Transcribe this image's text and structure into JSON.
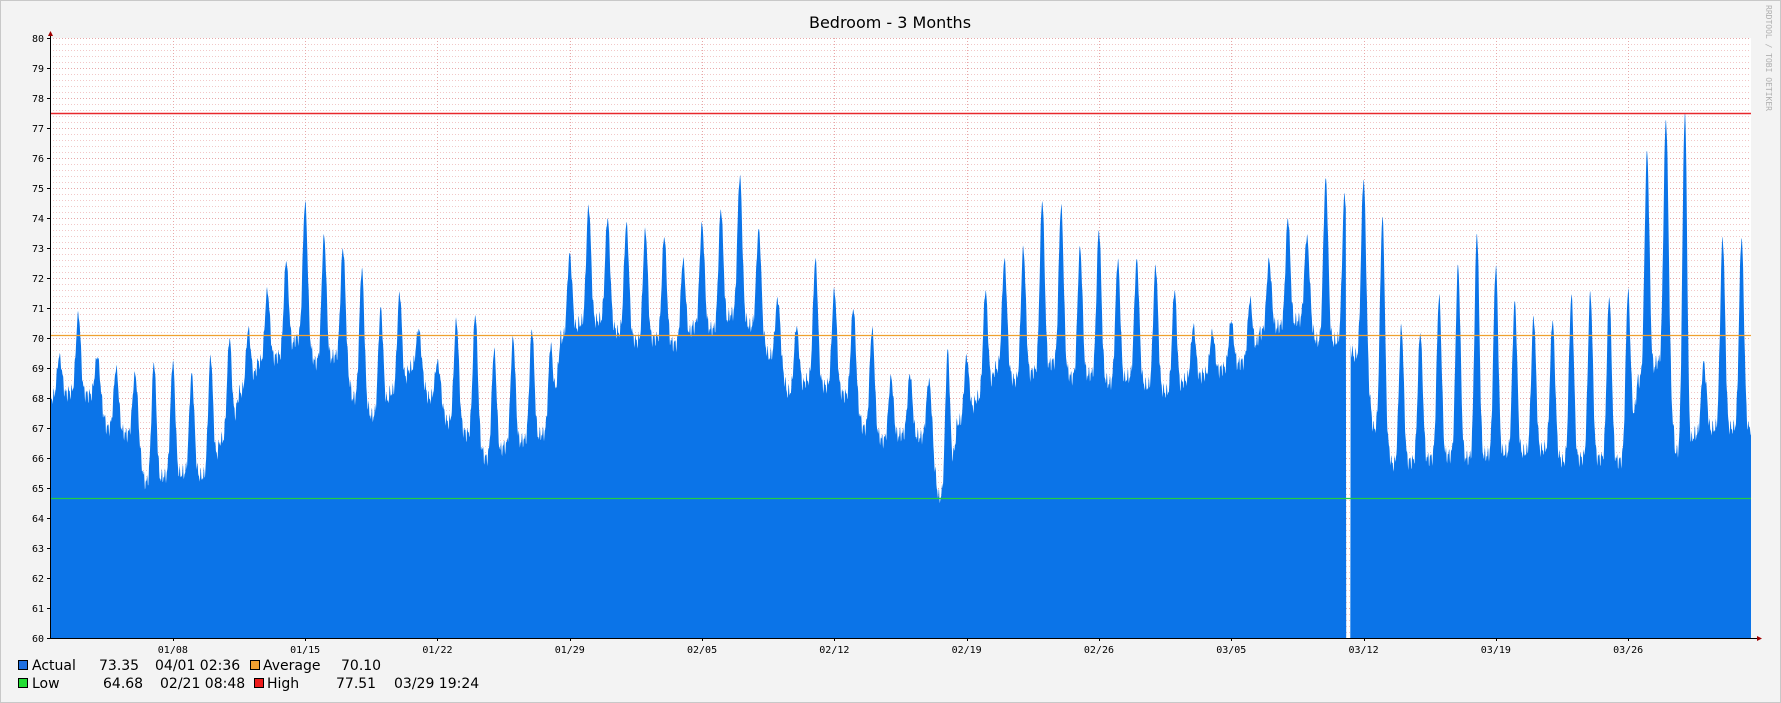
{
  "watermark": "RRDTOOL / TOBI OETIKER",
  "chart_data": {
    "type": "area",
    "title": "Bedroom - 3 Months",
    "ylim": [
      60,
      80
    ],
    "yticks": [
      60,
      61,
      62,
      63,
      64,
      65,
      66,
      67,
      68,
      69,
      70,
      71,
      72,
      73,
      74,
      75,
      76,
      77,
      78,
      79,
      80
    ],
    "xlim_days": [
      0,
      90
    ],
    "xticks": [
      {
        "day": 6.5,
        "label": "01/08"
      },
      {
        "day": 13.5,
        "label": "01/15"
      },
      {
        "day": 20.5,
        "label": "01/22"
      },
      {
        "day": 27.5,
        "label": "01/29"
      },
      {
        "day": 34.5,
        "label": "02/05"
      },
      {
        "day": 41.5,
        "label": "02/12"
      },
      {
        "day": 48.5,
        "label": "02/19"
      },
      {
        "day": 55.5,
        "label": "02/26"
      },
      {
        "day": 62.5,
        "label": "03/05"
      },
      {
        "day": 69.5,
        "label": "03/12"
      },
      {
        "day": 76.5,
        "label": "03/19"
      },
      {
        "day": 83.5,
        "label": "03/26"
      }
    ],
    "grid": true,
    "gap_day": 68.7,
    "series": [
      {
        "name": "Actual",
        "color": "#0b74e8",
        "daily_high": [
          69.4,
          70.8,
          69.4,
          69.0,
          68.8,
          69.2,
          69.2,
          68.8,
          69.4,
          70.0,
          70.3,
          71.6,
          72.6,
          74.5,
          73.4,
          73.0,
          72.3,
          71.0,
          71.5,
          70.3,
          69.2,
          70.6,
          70.8,
          69.6,
          70.0,
          70.3,
          69.8,
          72.8,
          74.4,
          74.0,
          73.8,
          73.6,
          73.4,
          72.6,
          73.8,
          74.3,
          75.4,
          73.6,
          71.3,
          70.4,
          72.6,
          71.6,
          71.0,
          70.3,
          68.7,
          68.8,
          68.6,
          69.6,
          69.4,
          71.6,
          72.6,
          73.0,
          74.6,
          74.4,
          73.0,
          73.6,
          72.6,
          72.6,
          72.4,
          71.6,
          70.4,
          70.2,
          70.6,
          71.3,
          72.6,
          74.0,
          73.4,
          75.3,
          74.8,
          75.3,
          74.0,
          70.4,
          70.2,
          71.4,
          72.4,
          73.5,
          72.4,
          71.2,
          70.7,
          70.6,
          71.4,
          71.5,
          71.4,
          71.6,
          76.2,
          77.3,
          77.51,
          69.2,
          73.35
        ],
        "daily_low": [
          68.0,
          68.2,
          68.1,
          67.0,
          66.8,
          65.2,
          65.4,
          65.5,
          65.4,
          66.6,
          68.2,
          69.2,
          69.4,
          70.0,
          69.2,
          69.4,
          68.0,
          67.4,
          68.2,
          69.0,
          68.0,
          67.2,
          66.8,
          66.0,
          66.4,
          66.6,
          66.8,
          70.0,
          70.5,
          70.6,
          70.2,
          69.9,
          70.0,
          69.8,
          70.4,
          70.3,
          70.8,
          70.4,
          69.4,
          68.2,
          68.6,
          68.4,
          68.1,
          67.0,
          66.6,
          66.8,
          66.7,
          64.7,
          67.2,
          68.0,
          69.0,
          68.6,
          68.9,
          69.2,
          68.7,
          68.8,
          68.5,
          68.7,
          68.4,
          68.2,
          68.6,
          68.8,
          69.0,
          69.2,
          70.2,
          70.4,
          70.6,
          69.9,
          69.9,
          69.4,
          67.0,
          65.8,
          65.9,
          66.0,
          66.1,
          66.0,
          66.1,
          66.2,
          66.2,
          66.3,
          65.9,
          66.0,
          66.0,
          65.9,
          68.6,
          69.2,
          66.2,
          66.8,
          67.0
        ]
      }
    ],
    "reference_lines": [
      {
        "name": "Average",
        "value": 70.1,
        "color": "#f0a030"
      },
      {
        "name": "Low",
        "value": 64.68,
        "color": "#22cc44"
      },
      {
        "name": "High",
        "value": 77.51,
        "color": "#e8282c"
      }
    ]
  },
  "legend": [
    [
      {
        "label": "Actual",
        "color": "#1e6fe0",
        "value": "73.35",
        "time": "04/01 02:36"
      },
      {
        "label": "Average",
        "color": "#f0a030",
        "value": "70.10",
        "time": ""
      }
    ],
    [
      {
        "label": "Low",
        "color": "#22dd33",
        "value": "64.68",
        "time": "02/21 08:48"
      },
      {
        "label": "High",
        "color": "#ee1c1c",
        "value": "77.51",
        "time": "03/29 19:24"
      }
    ]
  ]
}
